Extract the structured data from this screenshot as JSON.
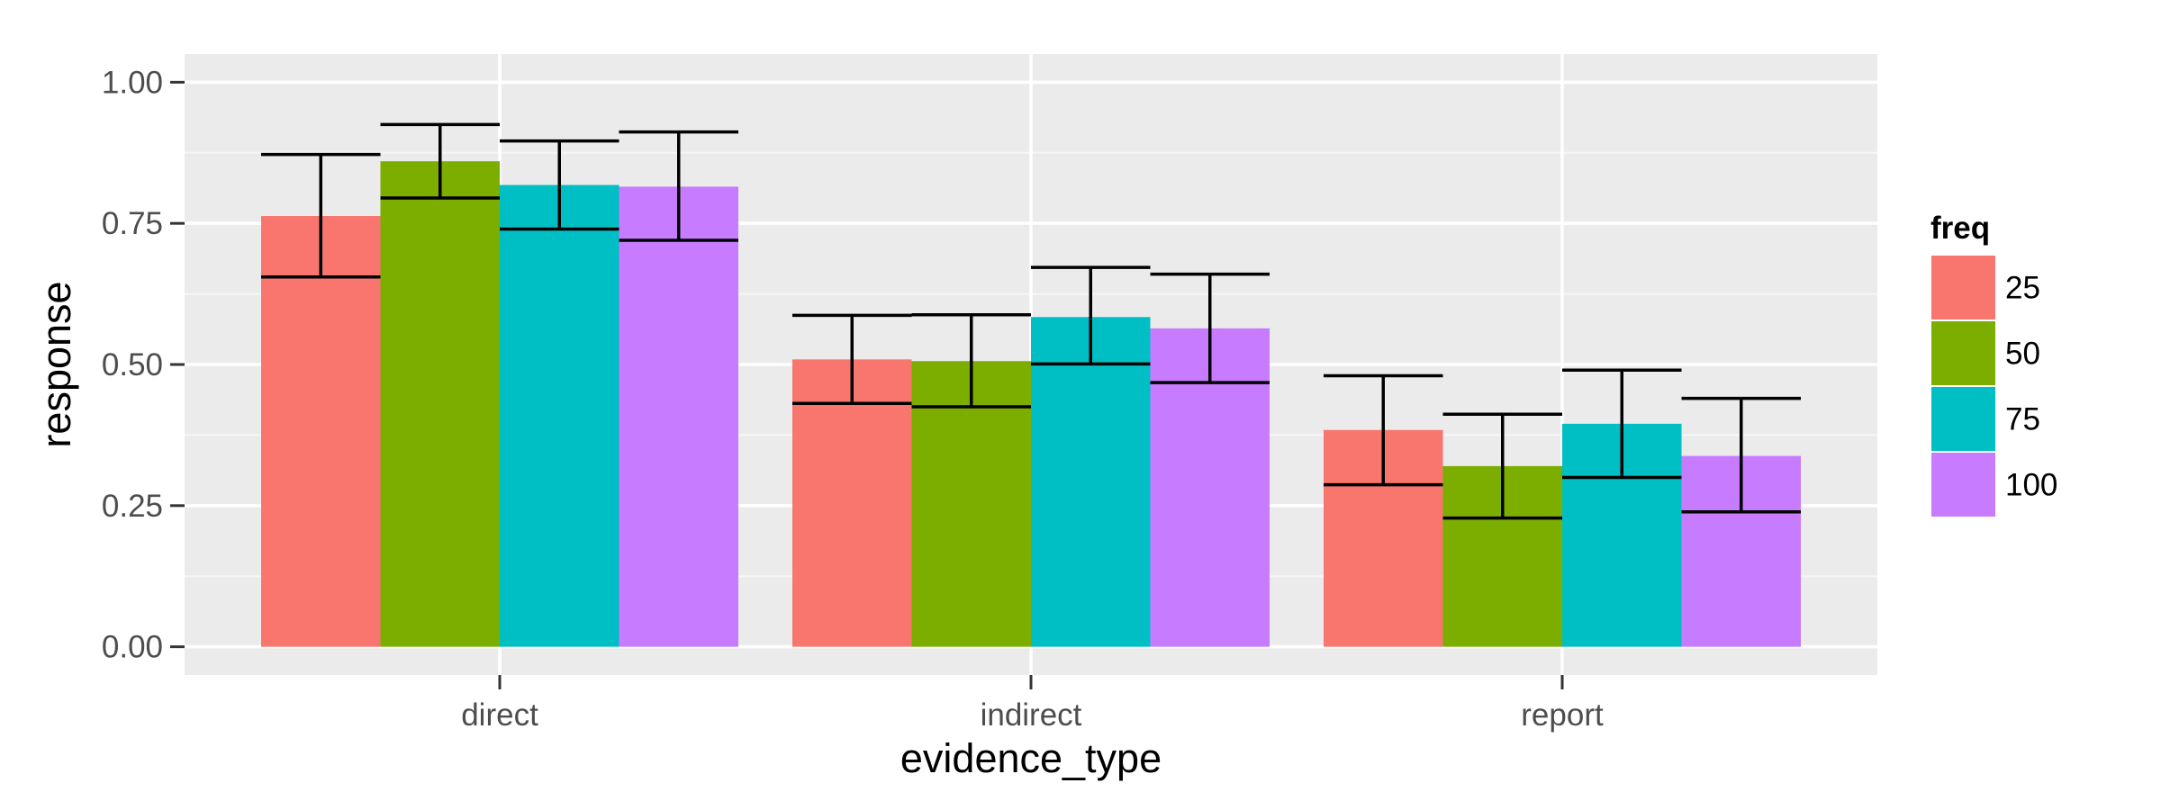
{
  "chart_data": {
    "type": "bar",
    "xlabel": "evidence_type",
    "ylabel": "response",
    "categories": [
      "direct",
      "indirect",
      "report"
    ],
    "ylim": [
      -0.05,
      1.05
    ],
    "yticks": [
      "0.00",
      "0.25",
      "0.50",
      "0.75",
      "1.00"
    ],
    "ytick_values": [
      0.0,
      0.25,
      0.5,
      0.75,
      1.0
    ],
    "grid": true,
    "legend": {
      "title": "freq",
      "position": "right"
    },
    "series": [
      {
        "name": "25",
        "color": "#F8766D",
        "values": [
          0.763,
          0.509,
          0.384
        ],
        "err_low": [
          0.655,
          0.431,
          0.287
        ],
        "err_high": [
          0.872,
          0.587,
          0.48
        ]
      },
      {
        "name": "50",
        "color": "#7CAE00",
        "values": [
          0.86,
          0.506,
          0.32
        ],
        "err_low": [
          0.795,
          0.425,
          0.228
        ],
        "err_high": [
          0.925,
          0.588,
          0.412
        ]
      },
      {
        "name": "75",
        "color": "#00BFC4",
        "values": [
          0.818,
          0.584,
          0.395
        ],
        "err_low": [
          0.74,
          0.501,
          0.3
        ],
        "err_high": [
          0.896,
          0.672,
          0.49
        ]
      },
      {
        "name": "100",
        "color": "#C77CFF",
        "values": [
          0.815,
          0.564,
          0.338
        ],
        "err_low": [
          0.72,
          0.468,
          0.239
        ],
        "err_high": [
          0.912,
          0.66,
          0.44
        ]
      }
    ]
  }
}
